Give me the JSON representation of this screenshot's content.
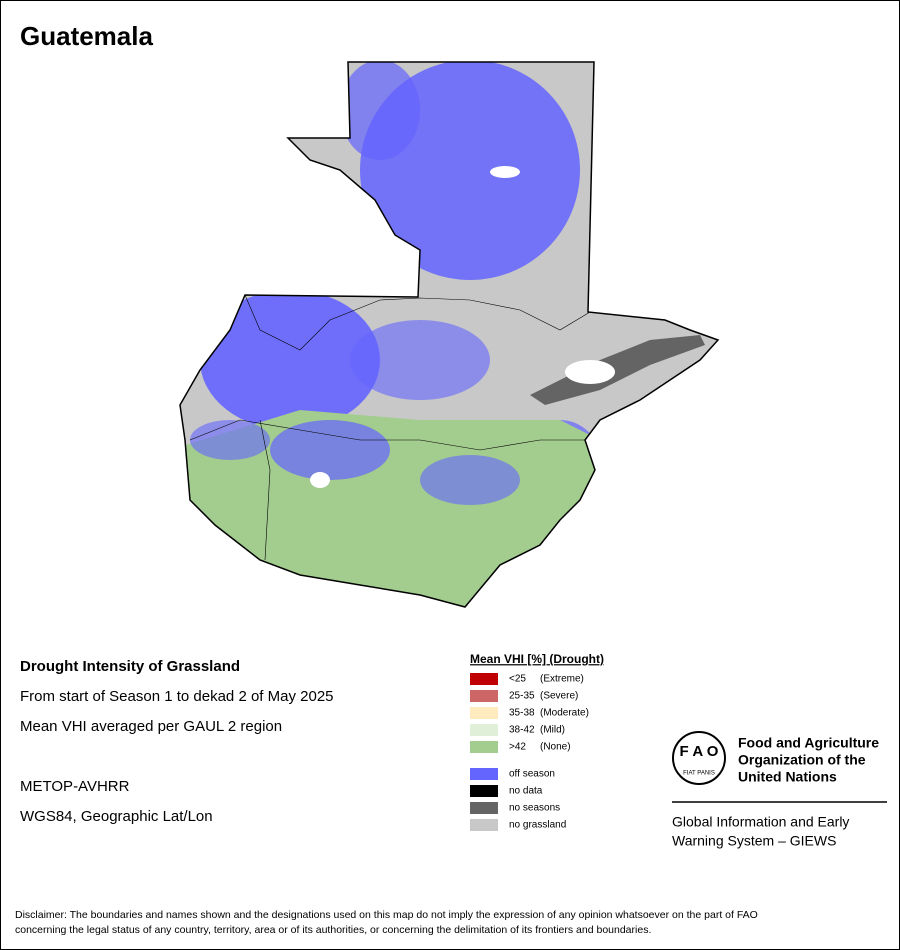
{
  "title": "Guatemala",
  "info": {
    "heading": "Drought Intensity of Grassland",
    "lines": [
      "From start of Season 1 to dekad 2 of May 2025",
      "Mean VHI averaged per GAUL 2 region"
    ],
    "source": [
      "METOP-AVHRR",
      "WGS84, Geographic Lat/Lon"
    ]
  },
  "legend": {
    "title": "Mean VHI [%] (Drought)",
    "classes": [
      {
        "label": "<25",
        "note": "(Extreme)",
        "color": "#c00000"
      },
      {
        "label": "25-35",
        "note": "(Severe)",
        "color": "#cd6666"
      },
      {
        "label": "35-38",
        "note": "(Moderate)",
        "color": "#ffebbe"
      },
      {
        "label": "38-42",
        "note": "(Mild)",
        "color": "#e0f0d8"
      },
      {
        "label": ">42",
        "note": "(None)",
        "color": "#a3cc8f"
      }
    ],
    "other": [
      {
        "label": "off season",
        "color": "#6464ff"
      },
      {
        "label": "no data",
        "color": "#000000"
      },
      {
        "label": "no seasons",
        "color": "#646464"
      },
      {
        "label": "no grassland",
        "color": "#c8c8c8"
      }
    ]
  },
  "logo": {
    "org": [
      "Food and Agriculture",
      "Organization of the",
      "United Nations"
    ],
    "giews": [
      "Global Information and Early",
      "Warning System – GIEWS"
    ]
  },
  "disclaimer": [
    "Disclaimer: The boundaries and names shown and the designations used on this map do not imply the expression of any opinion whatsoever on the part of FAO",
    "concerning the legal status of any country, territory, area or of its authorities, or concerning the delimitation of its frontiers and boundaries."
  ]
}
